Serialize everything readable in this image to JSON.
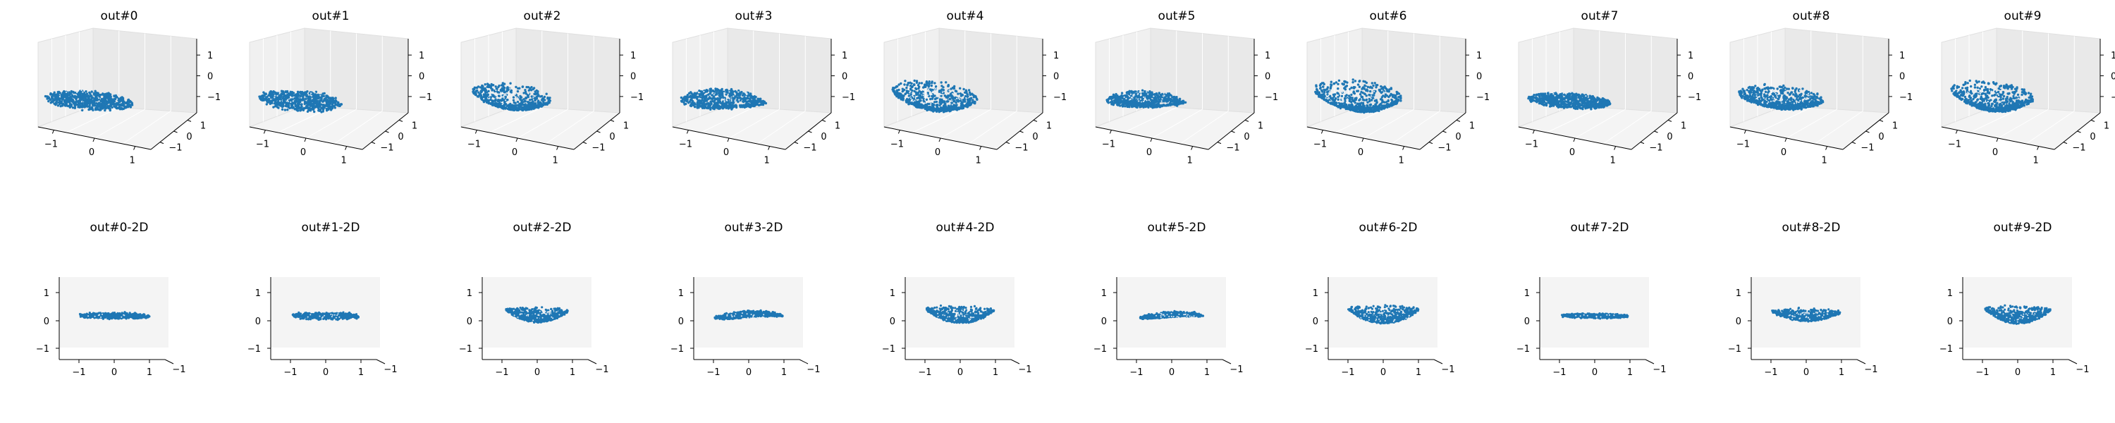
{
  "chart_data": {
    "type": "scatter",
    "panel_count": 10,
    "rows": [
      {
        "projection": "3d",
        "titles": [
          "out#0",
          "out#1",
          "out#2",
          "out#3",
          "out#4",
          "out#5",
          "out#6",
          "out#7",
          "out#8",
          "out#9"
        ]
      },
      {
        "projection": "2d",
        "titles": [
          "out#0-2D",
          "out#1-2D",
          "out#2-2D",
          "out#3-2D",
          "out#4-2D",
          "out#5-2D",
          "out#6-2D",
          "out#7-2D",
          "out#8-2D",
          "out#9-2D"
        ]
      }
    ],
    "axes": {
      "x_ticks": [
        "−1",
        "0",
        "1"
      ],
      "y_ticks": [
        "−1",
        "0",
        "1"
      ],
      "z_ticks": [
        "1",
        "0",
        "−1"
      ],
      "depth_tick": "−1",
      "range": [
        -1.5,
        1.5
      ]
    },
    "point_color": "#1f77b4",
    "grid": true,
    "panes_color": "#f2f2f2",
    "clouds": [
      {
        "shape": "disk",
        "rx": 0.62,
        "ry": 0.22,
        "zspread": 0.15,
        "density": 0.15
      },
      {
        "shape": "disk",
        "rx": 0.58,
        "ry": 0.24,
        "zspread": 0.18,
        "density": 0.2
      },
      {
        "shape": "bowl",
        "rx": 0.55,
        "ry": 0.28,
        "zspread": 0.4,
        "density": 0.35
      },
      {
        "shape": "swirl",
        "rx": 0.6,
        "ry": 0.22,
        "zspread": 0.25,
        "density": 0.3
      },
      {
        "shape": "bowl",
        "rx": 0.6,
        "ry": 0.32,
        "zspread": 0.45,
        "density": 0.45
      },
      {
        "shape": "swirl",
        "rx": 0.55,
        "ry": 0.18,
        "zspread": 0.2,
        "density": 0.35
      },
      {
        "shape": "bowl",
        "rx": 0.62,
        "ry": 0.32,
        "zspread": 0.5,
        "density": 0.45
      },
      {
        "shape": "disk",
        "rx": 0.58,
        "ry": 0.18,
        "zspread": 0.1,
        "density": 0.15
      },
      {
        "shape": "bowl",
        "rx": 0.6,
        "ry": 0.26,
        "zspread": 0.3,
        "density": 0.4
      },
      {
        "shape": "bowl",
        "rx": 0.58,
        "ry": 0.3,
        "zspread": 0.5,
        "density": 0.4
      }
    ]
  }
}
